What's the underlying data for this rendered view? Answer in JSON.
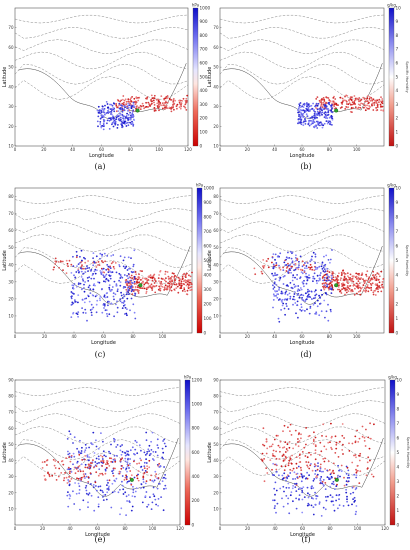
{
  "chart_data": [
    {
      "panel": "(a)",
      "type": "scatter",
      "xlabel": "Longitude",
      "ylabel": "Latitude",
      "xlim": [
        0,
        120
      ],
      "ylim": [
        10,
        80
      ],
      "xticks": [
        0,
        20,
        40,
        60,
        80,
        100,
        120
      ],
      "yticks": [
        10,
        20,
        30,
        40,
        50,
        60,
        70
      ],
      "colorbar": {
        "unit": "hPa",
        "label": "",
        "ticks": [
          0,
          100,
          200,
          300,
          400,
          500,
          600,
          700,
          800,
          900,
          1000
        ],
        "range": [
          0,
          1000
        ],
        "scheme": "pressure"
      },
      "source": {
        "lon": 85,
        "lat": 28
      },
      "clusters": [
        {
          "tone": "red",
          "n": 200,
          "lon": [
            70,
            120
          ],
          "lat": [
            27,
            36
          ]
        },
        {
          "tone": "blue",
          "n": 230,
          "lon": [
            57,
            83
          ],
          "lat": [
            18,
            33
          ]
        }
      ]
    },
    {
      "panel": "(b)",
      "type": "scatter",
      "xlabel": "Longitude",
      "ylabel": "Latitude",
      "xlim": [
        0,
        120
      ],
      "ylim": [
        10,
        80
      ],
      "xticks": [
        0,
        20,
        40,
        60,
        80,
        100
      ],
      "yticks": [
        10,
        20,
        30,
        40,
        50,
        60,
        70
      ],
      "colorbar": {
        "unit": "g/kg",
        "label": "Specific Humidity",
        "ticks": [
          0,
          1,
          2,
          3,
          4,
          5,
          6,
          7,
          8,
          9,
          10
        ],
        "range": [
          0,
          10
        ],
        "scheme": "humidity"
      },
      "source": {
        "lon": 85,
        "lat": 28
      },
      "clusters": [
        {
          "tone": "red",
          "n": 200,
          "lon": [
            70,
            120
          ],
          "lat": [
            27,
            36
          ]
        },
        {
          "tone": "blue",
          "n": 230,
          "lon": [
            57,
            83
          ],
          "lat": [
            18,
            33
          ]
        }
      ]
    },
    {
      "panel": "(c)",
      "type": "scatter",
      "xlabel": "Longitude",
      "ylabel": "Latitude",
      "xlim": [
        0,
        120
      ],
      "ylim": [
        0,
        85
      ],
      "xticks": [
        0,
        20,
        40,
        60,
        80,
        100
      ],
      "yticks": [
        10,
        20,
        30,
        40,
        50,
        60,
        70,
        80
      ],
      "colorbar": {
        "unit": "hPa",
        "label": "",
        "ticks": [
          0,
          100,
          200,
          300,
          400,
          500,
          600,
          700,
          800,
          900,
          1000
        ],
        "range": [
          0,
          1000
        ],
        "scheme": "pressure"
      },
      "source": {
        "lon": 85,
        "lat": 28
      },
      "clusters": [
        {
          "tone": "red",
          "n": 280,
          "lon": [
            75,
            120
          ],
          "lat": [
            22,
            37
          ]
        },
        {
          "tone": "red",
          "n": 50,
          "lon": [
            25,
            70
          ],
          "lat": [
            34,
            45
          ]
        },
        {
          "tone": "blue",
          "n": 310,
          "lon": [
            38,
            82
          ],
          "lat": [
            6,
            50
          ]
        }
      ]
    },
    {
      "panel": "(d)",
      "type": "scatter",
      "xlabel": "Longitude",
      "ylabel": "Latitude",
      "xlim": [
        0,
        120
      ],
      "ylim": [
        0,
        85
      ],
      "xticks": [
        0,
        20,
        40,
        60,
        80,
        100
      ],
      "yticks": [
        10,
        20,
        30,
        40,
        50,
        60,
        70,
        80
      ],
      "colorbar": {
        "unit": "g/kg",
        "label": "Specific Humidity",
        "ticks": [
          0,
          1,
          2,
          3,
          4,
          5,
          6,
          7,
          8,
          9,
          10
        ],
        "range": [
          0,
          10
        ],
        "scheme": "humidity"
      },
      "source": {
        "lon": 85,
        "lat": 28
      },
      "clusters": [
        {
          "tone": "red",
          "n": 280,
          "lon": [
            75,
            120
          ],
          "lat": [
            22,
            37
          ]
        },
        {
          "tone": "red",
          "n": 50,
          "lon": [
            25,
            70
          ],
          "lat": [
            34,
            45
          ]
        },
        {
          "tone": "blue",
          "n": 310,
          "lon": [
            38,
            82
          ],
          "lat": [
            6,
            50
          ]
        }
      ]
    },
    {
      "panel": "(e)",
      "type": "scatter",
      "xlabel": "Longitude",
      "ylabel": "Latitude",
      "xlim": [
        0,
        120
      ],
      "ylim": [
        0,
        90
      ],
      "xticks": [
        0,
        20,
        40,
        60,
        80,
        100,
        120
      ],
      "yticks": [
        10,
        20,
        30,
        40,
        50,
        60,
        70,
        80,
        90
      ],
      "colorbar": {
        "unit": "hPa",
        "label": "",
        "ticks": [
          0,
          200,
          400,
          600,
          800,
          1000,
          1200
        ],
        "range": [
          0,
          1200
        ],
        "scheme": "pressure"
      },
      "source": {
        "lon": 85,
        "lat": 28
      },
      "clusters": [
        {
          "tone": "blue",
          "n": 330,
          "lon": [
            38,
            110
          ],
          "lat": [
            4,
            62
          ]
        },
        {
          "tone": "red",
          "n": 150,
          "lon": [
            20,
            105
          ],
          "lat": [
            24,
            45
          ]
        }
      ]
    },
    {
      "panel": "(f)",
      "type": "scatter",
      "xlabel": "Longitude",
      "ylabel": "Latitude",
      "xlim": [
        0,
        120
      ],
      "ylim": [
        0,
        90
      ],
      "xticks": [
        0,
        20,
        40,
        60,
        80,
        100,
        120
      ],
      "yticks": [
        10,
        20,
        30,
        40,
        50,
        60,
        70,
        80,
        90
      ],
      "colorbar": {
        "unit": "g/kg",
        "label": "Specific Humidity",
        "ticks": [
          0,
          1,
          2,
          3,
          4,
          5,
          6,
          7,
          8,
          9,
          10
        ],
        "range": [
          0,
          10
        ],
        "scheme": "humidity"
      },
      "source": {
        "lon": 85,
        "lat": 28
      },
      "clusters": [
        {
          "tone": "red",
          "n": 240,
          "lon": [
            30,
            112
          ],
          "lat": [
            22,
            65
          ]
        },
        {
          "tone": "blue",
          "n": 200,
          "lon": [
            38,
            100
          ],
          "lat": [
            5,
            40
          ]
        }
      ]
    }
  ]
}
